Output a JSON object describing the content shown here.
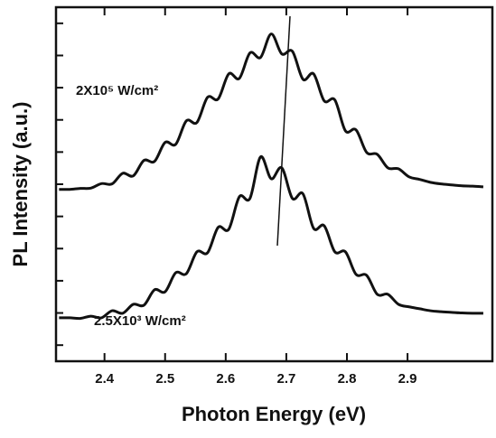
{
  "chart_data": {
    "type": "line",
    "xlabel": "Photon Energy (eV)",
    "ylabel": "PL Intensity (a.u.)",
    "xlim": [
      2.32,
      3.04
    ],
    "xticks": [
      2.4,
      2.5,
      2.6,
      2.7,
      2.8,
      2.9
    ],
    "ylim": [
      0,
      11
    ],
    "yticks": [
      0.5,
      1.5,
      2.5,
      3.5,
      4.5,
      5.5,
      6.5,
      7.5,
      8.5,
      9.5,
      10.5
    ],
    "x": [
      2.325,
      2.3425,
      2.36,
      2.3775,
      2.395,
      2.4125,
      2.43,
      2.4475,
      2.465,
      2.4825,
      2.5,
      2.5175,
      2.535,
      2.5525,
      2.57,
      2.5875,
      2.605,
      2.6225,
      2.64,
      2.6575,
      2.675,
      2.6925,
      2.71,
      2.7275,
      2.745,
      2.7625,
      2.78,
      2.7975,
      2.815,
      2.8325,
      2.85,
      2.8675,
      2.885,
      2.9025,
      2.92,
      2.9375,
      2.955,
      2.9725,
      2.99,
      3.0075,
      3.025
    ],
    "series": [
      {
        "name": "2X10⁵ W/cm²",
        "color": "#111111",
        "values": [
          5.34,
          5.34,
          5.37,
          5.38,
          5.52,
          5.51,
          5.84,
          5.76,
          6.24,
          6.21,
          6.8,
          6.74,
          7.47,
          7.42,
          8.2,
          8.15,
          8.93,
          8.79,
          9.58,
          9.44,
          10.17,
          9.55,
          9.63,
          8.76,
          8.93,
          8.09,
          8.12,
          7.16,
          7.19,
          6.49,
          6.43,
          6.01,
          5.98,
          5.73,
          5.65,
          5.56,
          5.51,
          5.48,
          5.45,
          5.44,
          5.42
        ]
      },
      {
        "name": "2.5X10³ W/cm²",
        "color": "#111111",
        "values": [
          1.35,
          1.35,
          1.33,
          1.4,
          1.35,
          1.57,
          1.49,
          1.77,
          1.74,
          2.22,
          2.16,
          2.75,
          2.72,
          3.4,
          3.37,
          4.16,
          4.1,
          5.11,
          5.06,
          6.35,
          5.67,
          6.01,
          5.06,
          5.2,
          4.13,
          4.21,
          3.4,
          3.4,
          2.7,
          2.67,
          2.08,
          2.08,
          1.77,
          1.69,
          1.63,
          1.57,
          1.54,
          1.52,
          1.5,
          1.49,
          1.49
        ]
      }
    ]
  }
}
